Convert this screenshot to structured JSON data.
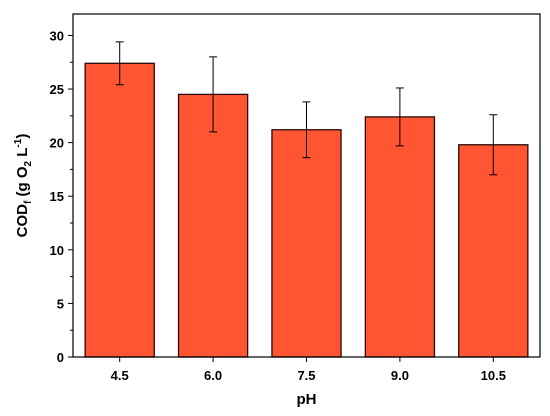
{
  "chart_data": {
    "type": "bar",
    "categories": [
      "4.5",
      "6.0",
      "7.5",
      "9.0",
      "10.5"
    ],
    "values": [
      27.4,
      24.5,
      21.2,
      22.4,
      19.8
    ],
    "error": [
      2.0,
      3.5,
      2.6,
      2.7,
      2.8
    ],
    "xlabel": "pH",
    "ylabel": {
      "main": "COD",
      "sub": "f",
      "mid": " (g O",
      "sub2": "2",
      "unit": " L",
      "sup": "-1",
      "end": ")"
    },
    "ylim": [
      0,
      32
    ],
    "yticks": [
      0,
      5,
      10,
      15,
      20,
      25,
      30
    ],
    "grid": false,
    "legend": "none",
    "colors": {
      "bar_fill": "#ff5533",
      "bar_stroke": "#2a0a0a",
      "error": "#000000",
      "axis": "#000000"
    }
  }
}
